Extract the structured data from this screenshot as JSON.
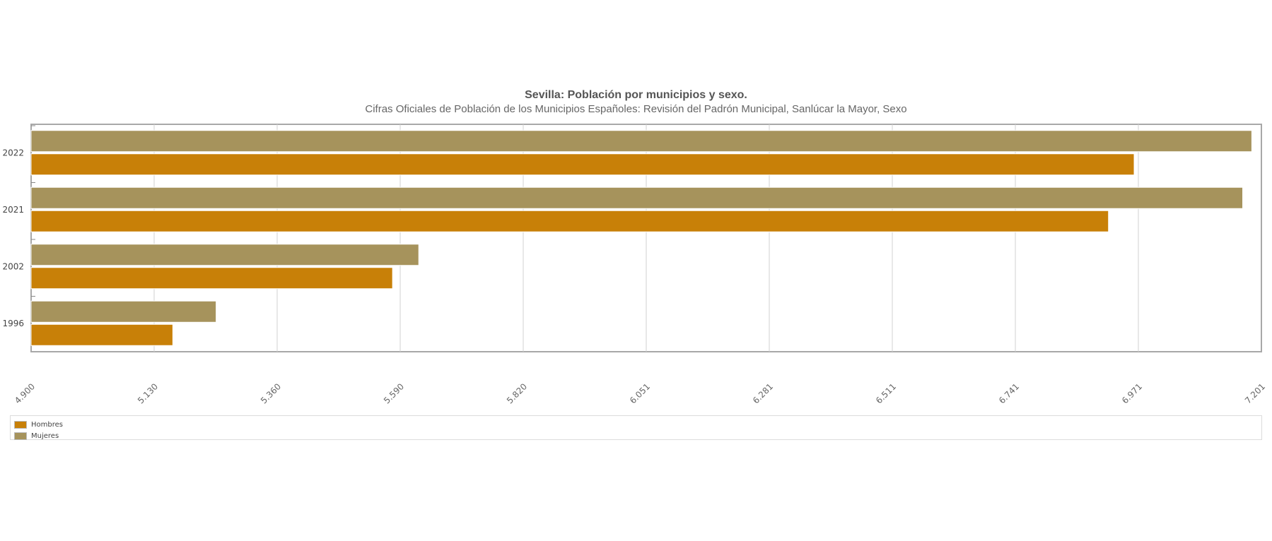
{
  "title": "Sevilla: Población por municipios y sexo.",
  "subtitle": "Cifras Oficiales de Población de los Municipios Españoles: Revisión del Padrón Municipal, Sanlúcar la Mayor, Sexo",
  "chart_data": {
    "type": "bar",
    "orientation": "horizontal",
    "categories": [
      "2022",
      "2021",
      "2002",
      "1996"
    ],
    "series": [
      {
        "name": "Mujeres",
        "color": "#a6935c",
        "values": [
          7183,
          7166,
          5625,
          5246
        ]
      },
      {
        "name": "Hombres",
        "color": "#c88008",
        "values": [
          6963,
          6915,
          5576,
          5165
        ]
      }
    ],
    "xlim": [
      4900,
      7201
    ],
    "xticks": [
      "4.900",
      "5.130",
      "5.360",
      "5.590",
      "5.820",
      "6.051",
      "6.281",
      "6.511",
      "6.741",
      "6.971",
      "7.201"
    ],
    "grid": true,
    "legend_position": "bottom"
  },
  "legend": [
    {
      "label": "Hombres",
      "color": "#c88008"
    },
    {
      "label": "Mujeres",
      "color": "#a6935c"
    }
  ]
}
